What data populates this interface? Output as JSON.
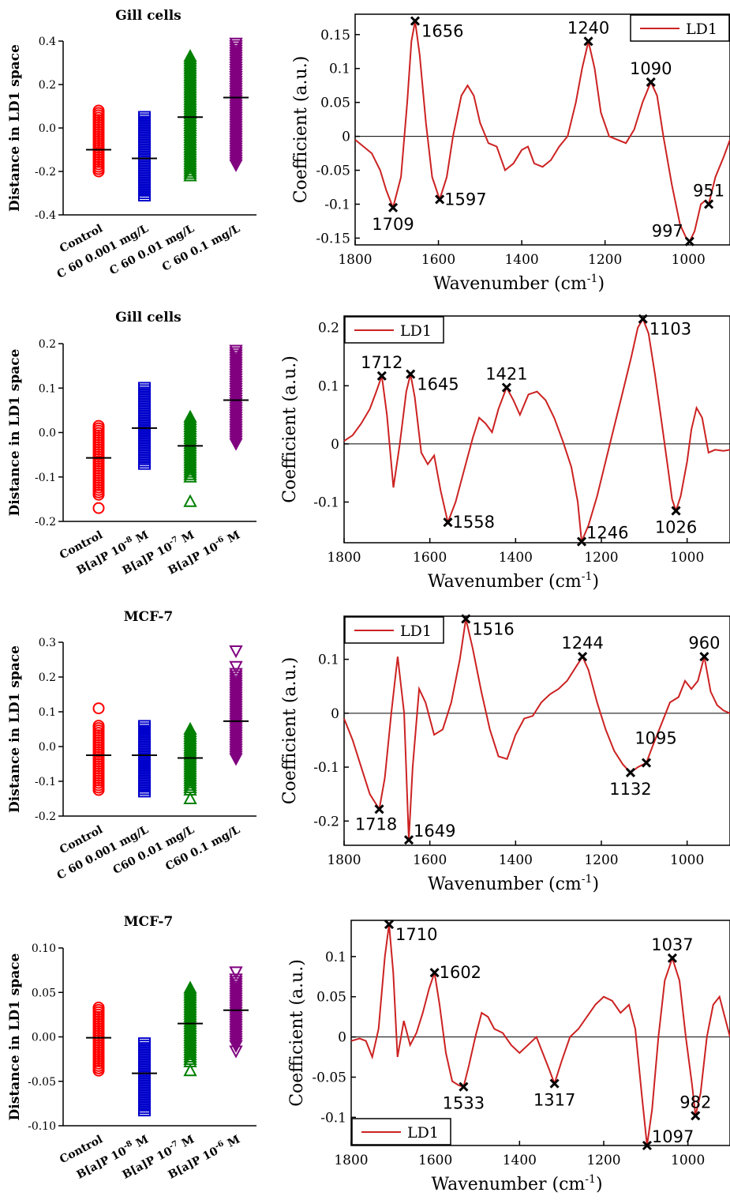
{
  "colors": {
    "control": "#ff0000",
    "level1": "#0000cc",
    "level2": "#008000",
    "level3": "#800080",
    "spectrum": "#cc2222",
    "marker": "#000000"
  },
  "chart_data": [
    {
      "type": "scatter",
      "title": "Gill cells",
      "ylabel": "Distance in LD1 space",
      "categories": [
        "Control",
        "C 60 0.001 mg/L",
        "C 60 0.01 mg/L",
        "C 60 0.1 mg/L"
      ],
      "ylim": [
        -0.4,
        0.4
      ],
      "yticks": [
        -0.4,
        -0.2,
        0.0,
        0.2,
        0.4
      ],
      "ytick_labels": [
        "-0.4",
        "-0.2",
        "0.0",
        "0.2",
        "0.4"
      ],
      "series": [
        {
          "marker": "circle",
          "color_key": "control",
          "min": -0.2,
          "max": 0.08,
          "mean": -0.1,
          "outliers": []
        },
        {
          "marker": "square",
          "color_key": "level1",
          "min": -0.32,
          "max": 0.06,
          "mean": -0.14,
          "outliers": []
        },
        {
          "marker": "triangle",
          "color_key": "level2",
          "min": -0.22,
          "max": 0.33,
          "mean": 0.05,
          "outliers": []
        },
        {
          "marker": "triangle-down",
          "color_key": "level3",
          "min": -0.17,
          "max": 0.39,
          "mean": 0.14,
          "outliers": []
        }
      ]
    },
    {
      "type": "scatter",
      "title": "Gill cells",
      "ylabel": "Distance in LD1 space",
      "categories": [
        "Control",
        "B[a]P 10-8 M",
        "B[a]P 10-7 M",
        "B[a]P 10-6 M"
      ],
      "category_parts": [
        [
          "Control",
          "",
          ""
        ],
        [
          "B[a]P 10",
          "-8",
          " M"
        ],
        [
          "B[a]P 10",
          "-7",
          " M"
        ],
        [
          "B[a]P 10",
          "-6",
          " M"
        ]
      ],
      "ylim": [
        -0.2,
        0.2
      ],
      "yticks": [
        -0.2,
        -0.1,
        0.0,
        0.1,
        0.2
      ],
      "ytick_labels": [
        "-0.2",
        "-0.1",
        "0.0",
        "0.1",
        "0.2"
      ],
      "series": [
        {
          "marker": "circle",
          "color_key": "control",
          "min": -0.14,
          "max": 0.015,
          "mean": -0.057,
          "outliers": [
            -0.17
          ]
        },
        {
          "marker": "square",
          "color_key": "level1",
          "min": -0.075,
          "max": 0.105,
          "mean": 0.01,
          "outliers": []
        },
        {
          "marker": "triangle",
          "color_key": "level2",
          "min": -0.1,
          "max": 0.035,
          "mean": -0.03,
          "outliers": [
            -0.155
          ]
        },
        {
          "marker": "triangle-down",
          "color_key": "level3",
          "min": -0.025,
          "max": 0.185,
          "mean": 0.073,
          "outliers": []
        }
      ]
    },
    {
      "type": "scatter",
      "title": "MCF-7",
      "ylabel": "Distance in LD1 space",
      "categories": [
        "Control",
        "C 60 0.001 mg/L",
        "C60 0.01 mg/L",
        "C60 0.1 mg/L"
      ],
      "ylim": [
        -0.2,
        0.3
      ],
      "yticks": [
        -0.2,
        -0.1,
        0.0,
        0.1,
        0.2,
        0.3
      ],
      "ytick_labels": [
        "-0.2",
        "-0.1",
        "0.0",
        "0.1",
        "0.2",
        "0.3"
      ],
      "series": [
        {
          "marker": "circle",
          "color_key": "control",
          "min": -0.125,
          "max": 0.06,
          "mean": -0.025,
          "outliers": [
            0.11
          ]
        },
        {
          "marker": "square",
          "color_key": "level1",
          "min": -0.135,
          "max": 0.065,
          "mean": -0.025,
          "outliers": []
        },
        {
          "marker": "triangle",
          "color_key": "level2",
          "min": -0.125,
          "max": 0.05,
          "mean": -0.033,
          "outliers": [
            -0.15
          ]
        },
        {
          "marker": "triangle-down",
          "color_key": "level3",
          "min": -0.035,
          "max": 0.21,
          "mean": 0.073,
          "outliers": [
            0.275,
            0.23
          ]
        }
      ]
    },
    {
      "type": "scatter",
      "title": "MCF-7",
      "ylabel": "Distance in LD1 space",
      "categories": [
        "Control",
        "B[a]P 10-8 M",
        "B[a]P 10-7 M",
        "B[a]P 10-6 M"
      ],
      "category_parts": [
        [
          "Control",
          "",
          ""
        ],
        [
          "B[a]P 10",
          "-8",
          " M"
        ],
        [
          "B[a]P 10",
          "-7",
          " M"
        ],
        [
          "B[a]P 10",
          "-6",
          " M"
        ]
      ],
      "ylim": [
        -0.1,
        0.1
      ],
      "yticks": [
        -0.1,
        -0.05,
        0.0,
        0.05,
        0.1
      ],
      "ytick_labels": [
        "-0.10",
        "-0.05",
        "0.00",
        "0.05",
        "0.10"
      ],
      "series": [
        {
          "marker": "circle",
          "color_key": "control",
          "min": -0.038,
          "max": 0.033,
          "mean": -0.001,
          "outliers": []
        },
        {
          "marker": "square",
          "color_key": "level1",
          "min": -0.085,
          "max": -0.005,
          "mean": -0.041,
          "outliers": []
        },
        {
          "marker": "triangle",
          "color_key": "level2",
          "min": -0.028,
          "max": 0.055,
          "mean": 0.015,
          "outliers": [
            -0.038
          ]
        },
        {
          "marker": "triangle-down",
          "color_key": "level3",
          "min": -0.01,
          "max": 0.065,
          "mean": 0.03,
          "outliers": [
            0.073,
            -0.016
          ]
        }
      ]
    },
    {
      "type": "line",
      "xlabel": "Wavenumber (cm",
      "xlabel_sup": "-1",
      "xlabel_tail": ")",
      "ylabel": "Coefficient (a.u.)",
      "legend": "LD1",
      "legend_position": "top-right",
      "xlim": [
        1800,
        900
      ],
      "ylim": [
        -0.16,
        0.18
      ],
      "xticks": [
        1800,
        1600,
        1400,
        1200,
        1000
      ],
      "yticks": [
        -0.15,
        -0.1,
        -0.05,
        0,
        0.05,
        0.1,
        0.15
      ],
      "ytick_labels": [
        "-0.15",
        "-0.1",
        "-0.05",
        "0",
        "0.05",
        "0.1",
        "0.15"
      ],
      "x": [
        1800,
        1760,
        1740,
        1725,
        1709,
        1690,
        1675,
        1665,
        1656,
        1645,
        1630,
        1615,
        1597,
        1580,
        1565,
        1545,
        1530,
        1515,
        1500,
        1480,
        1460,
        1440,
        1420,
        1400,
        1385,
        1370,
        1350,
        1330,
        1310,
        1290,
        1270,
        1255,
        1240,
        1225,
        1210,
        1190,
        1170,
        1150,
        1130,
        1110,
        1090,
        1075,
        1060,
        1040,
        1020,
        1005,
        997,
        985,
        970,
        960,
        951,
        935,
        915,
        900
      ],
      "y": [
        -0.005,
        -0.025,
        -0.05,
        -0.08,
        -0.105,
        -0.06,
        0.05,
        0.14,
        0.17,
        0.12,
        0.02,
        -0.06,
        -0.093,
        -0.06,
        0.0,
        0.06,
        0.075,
        0.06,
        0.02,
        -0.01,
        -0.015,
        -0.05,
        -0.04,
        -0.02,
        -0.015,
        -0.04,
        -0.045,
        -0.035,
        -0.015,
        0.0,
        0.05,
        0.1,
        0.14,
        0.1,
        0.035,
        0.0,
        -0.005,
        -0.01,
        0.01,
        0.05,
        0.08,
        0.06,
        0.0,
        -0.07,
        -0.13,
        -0.15,
        -0.155,
        -0.14,
        -0.1,
        -0.095,
        -0.1,
        -0.06,
        -0.03,
        -0.005
      ],
      "markers": [
        {
          "x": 1709,
          "y": -0.105,
          "label": "1709",
          "pos": "below"
        },
        {
          "x": 1656,
          "y": 0.17,
          "label": "1656",
          "pos": "right-low"
        },
        {
          "x": 1597,
          "y": -0.093,
          "label": "1597",
          "pos": "right"
        },
        {
          "x": 1240,
          "y": 0.14,
          "label": "1240",
          "pos": "above"
        },
        {
          "x": 1090,
          "y": 0.08,
          "label": "1090",
          "pos": "above"
        },
        {
          "x": 997,
          "y": -0.155,
          "label": "997",
          "pos": "left"
        },
        {
          "x": 951,
          "y": -0.1,
          "label": "951",
          "pos": "above"
        }
      ]
    },
    {
      "type": "line",
      "xlabel": "Wavenumber (cm",
      "xlabel_sup": "-1",
      "xlabel_tail": ")",
      "ylabel": "Coefficient (a.u.)",
      "legend": "LD1",
      "legend_position": "top-left",
      "xlim": [
        1800,
        900
      ],
      "ylim": [
        -0.17,
        0.22
      ],
      "xticks": [
        1800,
        1600,
        1400,
        1200,
        1000
      ],
      "yticks": [
        -0.1,
        0,
        0.1,
        0.2
      ],
      "ytick_labels": [
        "-0.1",
        "0",
        "0.1",
        "0.2"
      ],
      "x": [
        1800,
        1780,
        1760,
        1740,
        1725,
        1712,
        1700,
        1685,
        1670,
        1655,
        1645,
        1635,
        1620,
        1605,
        1590,
        1575,
        1558,
        1540,
        1520,
        1500,
        1485,
        1470,
        1455,
        1440,
        1421,
        1405,
        1390,
        1370,
        1350,
        1330,
        1310,
        1290,
        1270,
        1255,
        1246,
        1230,
        1210,
        1190,
        1170,
        1150,
        1130,
        1115,
        1103,
        1090,
        1075,
        1060,
        1045,
        1035,
        1026,
        1015,
        1000,
        990,
        978,
        965,
        950,
        935,
        915,
        900
      ],
      "y": [
        0.005,
        0.015,
        0.035,
        0.06,
        0.09,
        0.117,
        0.05,
        -0.075,
        0.0,
        0.09,
        0.12,
        0.08,
        -0.015,
        -0.035,
        -0.02,
        -0.08,
        -0.135,
        -0.1,
        -0.045,
        0.01,
        0.045,
        0.035,
        0.02,
        0.06,
        0.097,
        0.075,
        0.05,
        0.085,
        0.09,
        0.075,
        0.045,
        0.005,
        -0.04,
        -0.1,
        -0.168,
        -0.14,
        -0.09,
        -0.03,
        0.03,
        0.09,
        0.15,
        0.2,
        0.215,
        0.19,
        0.12,
        0.04,
        -0.04,
        -0.095,
        -0.115,
        -0.09,
        -0.03,
        0.025,
        0.062,
        0.045,
        -0.015,
        -0.01,
        -0.012,
        -0.01
      ],
      "markers": [
        {
          "x": 1712,
          "y": 0.117,
          "label": "1712",
          "pos": "above"
        },
        {
          "x": 1645,
          "y": 0.12,
          "label": "1645",
          "pos": "right-low"
        },
        {
          "x": 1421,
          "y": 0.097,
          "label": "1421",
          "pos": "above"
        },
        {
          "x": 1558,
          "y": -0.135,
          "label": "1558",
          "pos": "right"
        },
        {
          "x": 1246,
          "y": -0.168,
          "label": "1246",
          "pos": "right-up"
        },
        {
          "x": 1103,
          "y": 0.215,
          "label": "1103",
          "pos": "right-low"
        },
        {
          "x": 1026,
          "y": -0.115,
          "label": "1026",
          "pos": "below"
        }
      ]
    },
    {
      "type": "line",
      "xlabel": "Wavenumber (cm",
      "xlabel_sup": "-1",
      "xlabel_tail": ")",
      "ylabel": "Coefficient (a.u.)",
      "legend": "LD1",
      "legend_position": "top-left",
      "xlim": [
        1800,
        900
      ],
      "ylim": [
        -0.245,
        0.18
      ],
      "xticks": [
        1800,
        1600,
        1400,
        1200,
        1000
      ],
      "yticks": [
        -0.2,
        -0.1,
        0,
        0.1
      ],
      "ytick_labels": [
        "-0.2",
        "-0.1",
        "0",
        "0.1"
      ],
      "x": [
        1800,
        1780,
        1760,
        1740,
        1718,
        1705,
        1690,
        1675,
        1660,
        1649,
        1640,
        1625,
        1610,
        1590,
        1570,
        1550,
        1530,
        1516,
        1500,
        1480,
        1460,
        1440,
        1420,
        1400,
        1380,
        1360,
        1340,
        1320,
        1300,
        1280,
        1260,
        1244,
        1230,
        1210,
        1190,
        1170,
        1150,
        1132,
        1115,
        1095,
        1080,
        1060,
        1040,
        1020,
        1005,
        990,
        975,
        960,
        945,
        930,
        915,
        900
      ],
      "y": [
        -0.01,
        -0.05,
        -0.1,
        -0.15,
        -0.178,
        -0.12,
        0.0,
        0.105,
        0.0,
        -0.235,
        -0.1,
        0.045,
        0.02,
        -0.04,
        -0.03,
        0.02,
        0.1,
        0.175,
        0.12,
        0.04,
        -0.03,
        -0.08,
        -0.085,
        -0.04,
        -0.01,
        -0.005,
        0.02,
        0.035,
        0.045,
        0.06,
        0.085,
        0.105,
        0.08,
        0.02,
        -0.03,
        -0.07,
        -0.095,
        -0.11,
        -0.1,
        -0.092,
        -0.06,
        -0.02,
        0.02,
        0.03,
        0.06,
        0.045,
        0.06,
        0.105,
        0.04,
        0.015,
        0.005,
        0.0
      ],
      "markers": [
        {
          "x": 1718,
          "y": -0.178,
          "label": "1718",
          "pos": "below-left"
        },
        {
          "x": 1649,
          "y": -0.235,
          "label": "1649",
          "pos": "right-up"
        },
        {
          "x": 1516,
          "y": 0.175,
          "label": "1516",
          "pos": "right-low"
        },
        {
          "x": 1244,
          "y": 0.105,
          "label": "1244",
          "pos": "above"
        },
        {
          "x": 1132,
          "y": -0.11,
          "label": "1132",
          "pos": "below"
        },
        {
          "x": 1095,
          "y": -0.092,
          "label": "1095",
          "pos": "above-right"
        },
        {
          "x": 960,
          "y": 0.105,
          "label": "960",
          "pos": "above"
        }
      ]
    },
    {
      "type": "line",
      "xlabel": "Wavenumber (cm",
      "xlabel_sup": "-1",
      "xlabel_tail": ")",
      "ylabel": "Coefficient (a.u.)",
      "legend": "LD1",
      "legend_position": "bottom-left",
      "xlim": [
        1800,
        900
      ],
      "ylim": [
        -0.135,
        0.145
      ],
      "xticks": [
        1800,
        1600,
        1400,
        1200,
        1000
      ],
      "yticks": [
        -0.1,
        -0.05,
        0,
        0.05,
        0.1
      ],
      "ytick_labels": [
        "-0.1",
        "-0.05",
        "0",
        "0.05",
        "0.1"
      ],
      "x": [
        1800,
        1780,
        1765,
        1750,
        1735,
        1720,
        1710,
        1700,
        1690,
        1675,
        1660,
        1645,
        1630,
        1615,
        1602,
        1590,
        1575,
        1560,
        1545,
        1533,
        1520,
        1505,
        1490,
        1475,
        1460,
        1440,
        1420,
        1400,
        1380,
        1360,
        1345,
        1330,
        1317,
        1300,
        1280,
        1260,
        1240,
        1220,
        1200,
        1180,
        1160,
        1140,
        1125,
        1110,
        1097,
        1085,
        1070,
        1055,
        1037,
        1020,
        1005,
        990,
        982,
        970,
        955,
        940,
        925,
        900
      ],
      "y": [
        -0.005,
        -0.002,
        -0.005,
        -0.025,
        0.01,
        0.1,
        0.14,
        0.08,
        -0.025,
        0.02,
        -0.01,
        0.005,
        0.03,
        0.06,
        0.08,
        0.04,
        -0.02,
        -0.055,
        -0.06,
        -0.062,
        -0.035,
        0.0,
        0.03,
        0.025,
        0.01,
        0.005,
        -0.01,
        -0.02,
        -0.01,
        0.0,
        -0.02,
        -0.04,
        -0.058,
        -0.03,
        0.0,
        0.01,
        0.025,
        0.04,
        0.05,
        0.045,
        0.03,
        0.04,
        0.01,
        -0.07,
        -0.135,
        -0.09,
        0.0,
        0.07,
        0.098,
        0.07,
        0.0,
        -0.06,
        -0.098,
        -0.07,
        0.0,
        0.04,
        0.05,
        0.0
      ],
      "markers": [
        {
          "x": 1710,
          "y": 0.14,
          "label": "1710",
          "pos": "right-low"
        },
        {
          "x": 1602,
          "y": 0.08,
          "label": "1602",
          "pos": "right"
        },
        {
          "x": 1533,
          "y": -0.062,
          "label": "1533",
          "pos": "below"
        },
        {
          "x": 1317,
          "y": -0.058,
          "label": "1317",
          "pos": "below"
        },
        {
          "x": 1097,
          "y": -0.135,
          "label": "1097",
          "pos": "right-up"
        },
        {
          "x": 1037,
          "y": 0.098,
          "label": "1037",
          "pos": "above"
        },
        {
          "x": 982,
          "y": -0.098,
          "label": "982",
          "pos": "above"
        }
      ]
    }
  ]
}
